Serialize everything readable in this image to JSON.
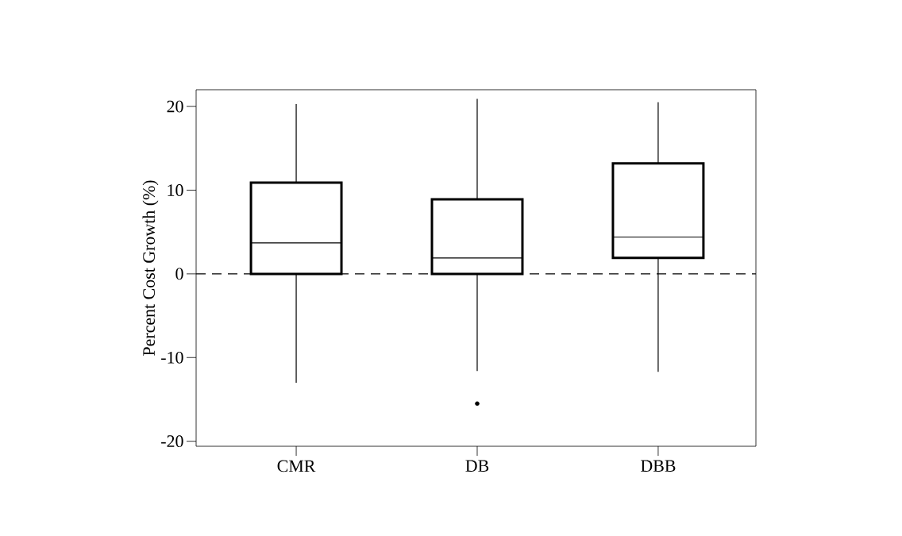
{
  "chart_data": {
    "type": "box",
    "ylabel": "Percent Cost Growth (%)",
    "categories": [
      "CMR",
      "DB",
      "DBB"
    ],
    "boxes": [
      {
        "low": -13.0,
        "q1": 0,
        "median": 3.7,
        "q3": 10.9,
        "high": 20.3
      },
      {
        "low": -11.6,
        "q1": 0,
        "median": 1.9,
        "q3": 8.9,
        "high": 20.9,
        "outliers": [
          -15.5
        ]
      },
      {
        "low": -11.7,
        "q1": 1.9,
        "median": 4.4,
        "q3": 13.2,
        "high": 20.5
      }
    ],
    "color": "#000000",
    "ylim": [
      -20.6,
      22.0
    ],
    "yticks": [
      -20,
      -10,
      0,
      10,
      20
    ],
    "ref_lines": [
      {
        "axis": "y",
        "value": 0,
        "line_style": "dashed"
      }
    ],
    "grid": false
  }
}
